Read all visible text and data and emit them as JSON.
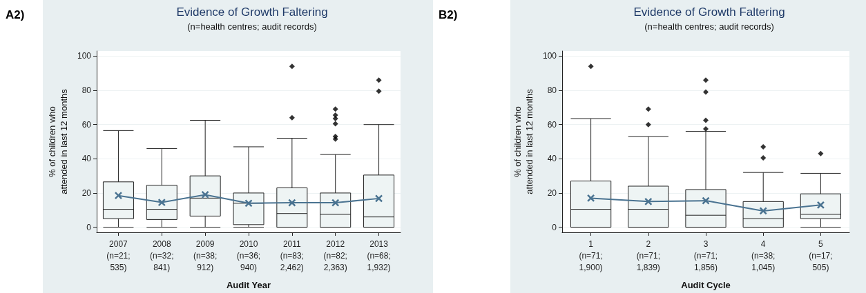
{
  "chart_data": [
    {
      "type": "box",
      "title": "Evidence of Growth Faltering",
      "subtitle": "(n=health centres; audit records)",
      "xlabel": "Audit Year",
      "ylabel": "% of children who\nattended in last 12 months",
      "annotations": [
        "A2)"
      ],
      "categories": [
        "2007\n(n=21;\n535)",
        "2008\n(n=32;\n841)",
        "2009\n(n=38;\n912)",
        "2010\n(n=36;\n940)",
        "2011\n(n=83;\n2,462)",
        "2012\n(n=82;\n2,363)",
        "2013\n(n=68;\n1,932)"
      ],
      "ylim": [
        -3,
        103
      ],
      "yticks": [
        0,
        20,
        40,
        60,
        80,
        100
      ],
      "grid": "y",
      "series": [
        {
          "type": "box",
          "color": "#eef4f4",
          "boxes": [
            {
              "low": 0,
              "q1": 5,
              "median": 10.5,
              "q3": 26.5,
              "high": 56.5
            },
            {
              "low": 0,
              "q1": 4.5,
              "median": 10.5,
              "q3": 24.5,
              "high": 46
            },
            {
              "low": 0,
              "q1": 6.5,
              "median": 17,
              "q3": 30,
              "high": 62.5
            },
            {
              "low": 0,
              "q1": 1.5,
              "median": 14,
              "q3": 20,
              "high": 47
            },
            {
              "low": 0,
              "q1": 0,
              "median": 8,
              "q3": 23,
              "high": 52,
              "outliers": [
                64,
                94
              ]
            },
            {
              "low": 0,
              "q1": 0,
              "median": 7.5,
              "q3": 20,
              "high": 42.5,
              "outliers": [
                51.5,
                53,
                60.5,
                63.5,
                65.5,
                69
              ]
            },
            {
              "low": 0,
              "q1": 0,
              "median": 6,
              "q3": 30.5,
              "high": 60,
              "outliers": [
                79.5,
                86
              ]
            }
          ]
        },
        {
          "type": "line",
          "color": "#4a7391",
          "marker": "cross",
          "values": [
            18.5,
            14.5,
            19,
            14,
            14.3,
            14.3,
            16.8
          ]
        }
      ]
    },
    {
      "type": "box",
      "title": "Evidence of Growth Faltering",
      "subtitle": "(n=health centres; audit records)",
      "xlabel": "Audit Cycle",
      "ylabel": "% of children who\nattended in last 12 months",
      "annotations": [
        "B2)"
      ],
      "categories": [
        "1\n(n=71;\n1,900)",
        "2\n(n=71;\n1,839)",
        "3\n(n=71;\n1,856)",
        "4\n(n=38;\n1,045)",
        "5\n(n=17;\n505)"
      ],
      "ylim": [
        -3,
        103
      ],
      "yticks": [
        0,
        20,
        40,
        60,
        80,
        100
      ],
      "grid": "y",
      "series": [
        {
          "type": "box",
          "color": "#eef4f4",
          "boxes": [
            {
              "low": 0,
              "q1": 0,
              "median": 10.5,
              "q3": 27,
              "high": 63.5,
              "outliers": [
                94
              ]
            },
            {
              "low": 0,
              "q1": 0,
              "median": 10.5,
              "q3": 24,
              "high": 53,
              "outliers": [
                60,
                69
              ]
            },
            {
              "low": 0,
              "q1": 0,
              "median": 7,
              "q3": 22,
              "high": 56,
              "outliers": [
                57.5,
                62.5,
                79,
                86
              ]
            },
            {
              "low": 0,
              "q1": 0,
              "median": 5,
              "q3": 15,
              "high": 32,
              "outliers": [
                40.5,
                47
              ]
            },
            {
              "low": 0,
              "q1": 5,
              "median": 7.5,
              "q3": 19.5,
              "high": 31.5,
              "outliers": [
                43
              ]
            }
          ]
        },
        {
          "type": "line",
          "color": "#4a7391",
          "marker": "cross",
          "values": [
            17,
            15,
            15.5,
            9.5,
            13
          ]
        }
      ]
    }
  ]
}
